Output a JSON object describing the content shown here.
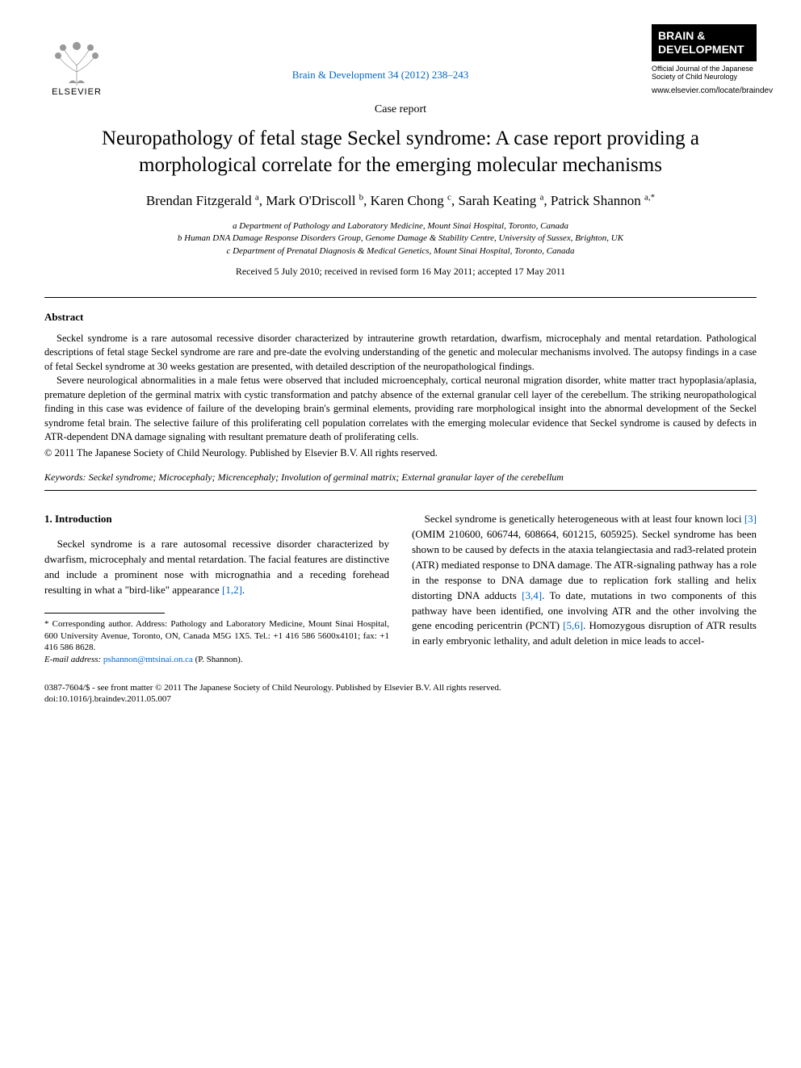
{
  "header": {
    "publisher_name": "ELSEVIER",
    "journal_citation": "Brain & Development 34 (2012) 238–243",
    "journal_badge_line1": "BRAIN &",
    "journal_badge_line2": "DEVELOPMENT",
    "journal_sub": "Official Journal of the Japanese Society of Child Neurology",
    "journal_url": "www.elsevier.com/locate/braindev"
  },
  "article": {
    "type": "Case report",
    "title": "Neuropathology of fetal stage Seckel syndrome: A case report providing a morphological correlate for the emerging molecular mechanisms",
    "authors_html": "Brendan Fitzgerald <sup>a</sup>, Mark O'Driscoll <sup>b</sup>, Karen Chong <sup>c</sup>, Sarah Keating <sup>a</sup>, Patrick Shannon <sup>a,*</sup>",
    "affiliations": [
      "a Department of Pathology and Laboratory Medicine, Mount Sinai Hospital, Toronto, Canada",
      "b Human DNA Damage Response Disorders Group, Genome Damage & Stability Centre, University of Sussex, Brighton, UK",
      "c Department of Prenatal Diagnosis & Medical Genetics, Mount Sinai Hospital, Toronto, Canada"
    ],
    "dates": "Received 5 July 2010; received in revised form 16 May 2011; accepted 17 May 2011"
  },
  "abstract": {
    "label": "Abstract",
    "para1": "Seckel syndrome is a rare autosomal recessive disorder characterized by intrauterine growth retardation, dwarfism, microcephaly and mental retardation. Pathological descriptions of fetal stage Seckel syndrome are rare and pre-date the evolving understanding of the genetic and molecular mechanisms involved. The autopsy findings in a case of fetal Seckel syndrome at 30 weeks gestation are presented, with detailed description of the neuropathological findings.",
    "para2": "Severe neurological abnormalities in a male fetus were observed that included microencephaly, cortical neuronal migration disorder, white matter tract hypoplasia/aplasia, premature depletion of the germinal matrix with cystic transformation and patchy absence of the external granular cell layer of the cerebellum. The striking neuropathological finding in this case was evidence of failure of the developing brain's germinal elements, providing rare morphological insight into the abnormal development of the Seckel syndrome fetal brain. The selective failure of this proliferating cell population correlates with the emerging molecular evidence that Seckel syndrome is caused by defects in ATR-dependent DNA damage signaling with resultant premature death of proliferating cells.",
    "copyright": "© 2011 The Japanese Society of Child Neurology. Published by Elsevier B.V. All rights reserved."
  },
  "keywords": {
    "label": "Keywords:",
    "text": "Seckel syndrome; Microcephaly; Micrencephaly; Involution of germinal matrix; External granular layer of the cerebellum"
  },
  "body": {
    "section1_heading": "1. Introduction",
    "col1_p1_pre": "Seckel syndrome is a rare autosomal recessive disorder characterized by dwarfism, microcephaly and mental retardation. The facial features are distinctive and include a prominent nose with micrognathia and a receding forehead resulting in what a \"bird-like\" appearance ",
    "col1_p1_ref": "[1,2]",
    "col1_p1_post": ".",
    "col2_p1_a": "Seckel syndrome is genetically heterogeneous with at least four known loci ",
    "col2_ref3": "[3]",
    "col2_p1_b": " (OMIM 210600, 606744, 608664, 601215, 605925). Seckel syndrome has been shown to be caused by defects in the ataxia telangiectasia and rad3-related protein (ATR) mediated response to DNA damage. The ATR-signaling pathway has a role in the response to DNA damage due to replication fork stalling and helix distorting DNA adducts ",
    "col2_ref34": "[3,4]",
    "col2_p1_c": ". To date, mutations in two components of this pathway have been identified, one involving ATR and the other involving the gene encoding pericentrin (PCNT) ",
    "col2_ref56": "[5,6]",
    "col2_p1_d": ". Homozygous disruption of ATR results in early embryonic lethality, and adult deletion in mice leads to accel-"
  },
  "footnote": {
    "corresponding": "* Corresponding author. Address: Pathology and Laboratory Medicine, Mount Sinai Hospital, 600 University Avenue, Toronto, ON, Canada M5G 1X5. Tel.: +1 416 586 5600x4101; fax: +1 416 586 8628.",
    "email_label": "E-mail address:",
    "email": "pshannon@mtsinai.on.ca",
    "email_person": "(P. Shannon)."
  },
  "footer": {
    "line1": "0387-7604/$ - see front matter © 2011 The Japanese Society of Child Neurology. Published by Elsevier B.V. All rights reserved.",
    "line2": "doi:10.1016/j.braindev.2011.05.007"
  },
  "colors": {
    "link": "#0066cc",
    "text": "#000000",
    "background": "#ffffff",
    "badge_bg": "#000000",
    "badge_fg": "#ffffff"
  }
}
